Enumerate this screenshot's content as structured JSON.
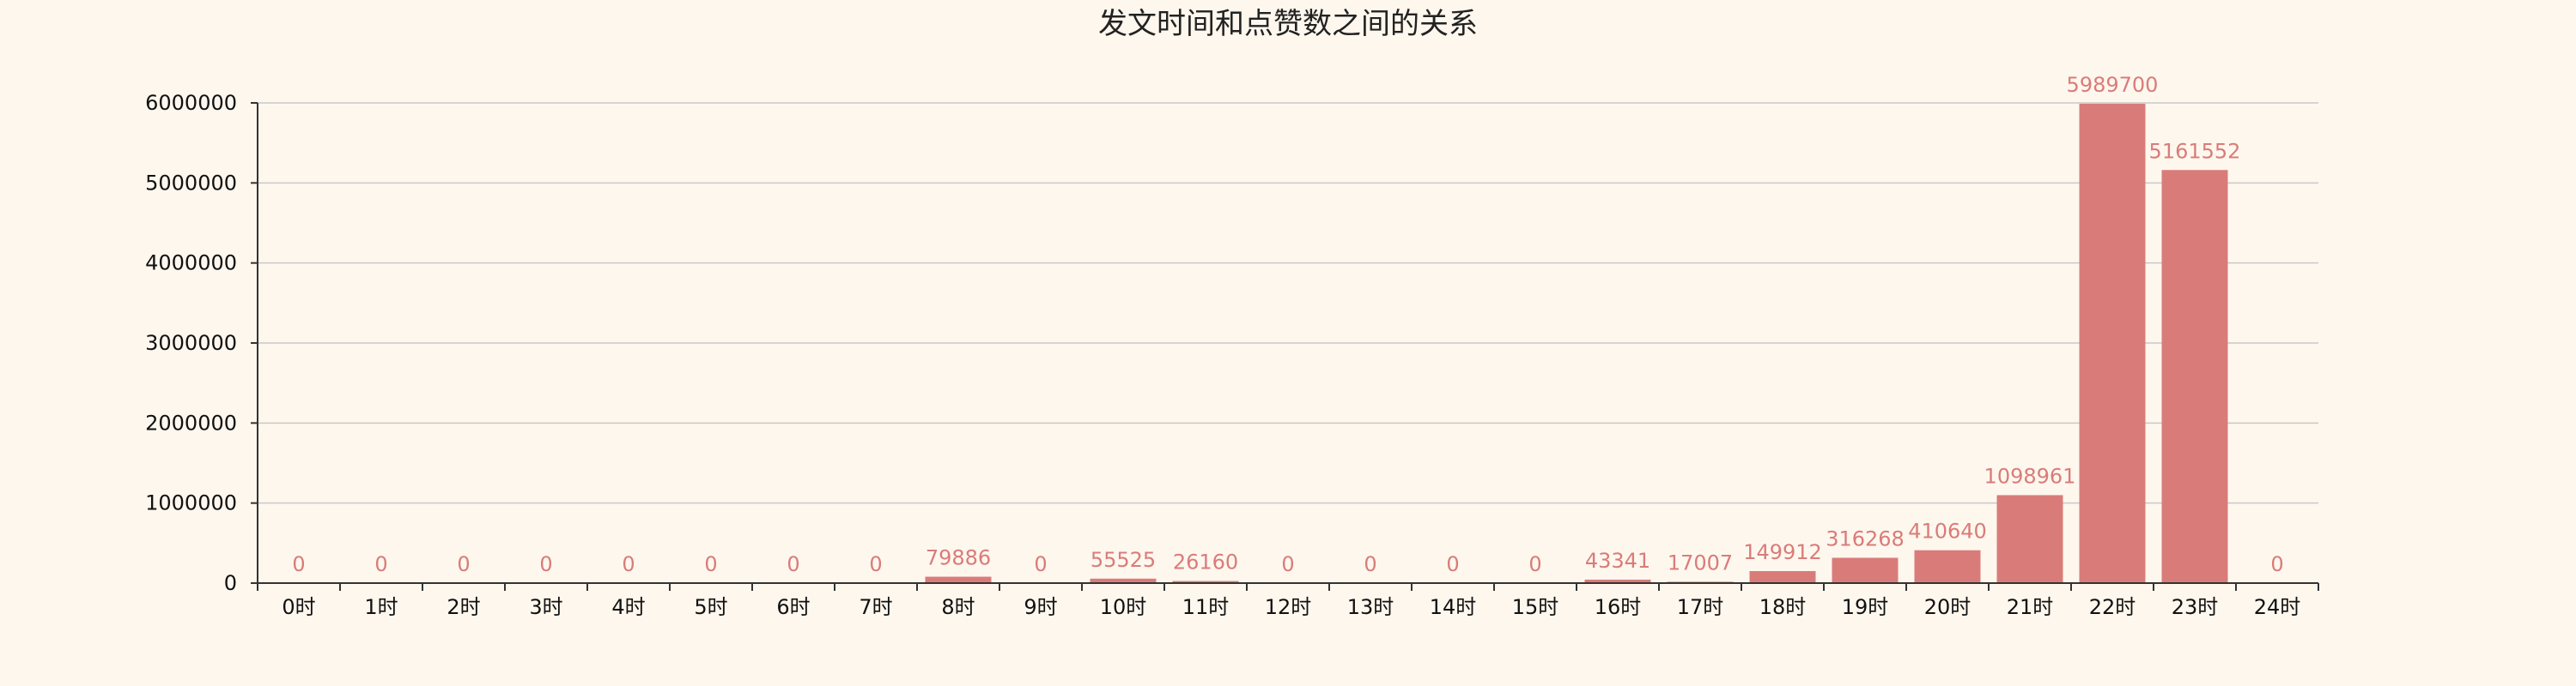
{
  "chart_data": {
    "type": "bar",
    "title": "发文时间和点赞数之间的关系",
    "xlabel": "",
    "ylabel": "",
    "ylim": [
      0,
      6000000
    ],
    "yticks": [
      0,
      1000000,
      2000000,
      3000000,
      4000000,
      5000000,
      6000000
    ],
    "grid": true,
    "categories": [
      "0时",
      "1时",
      "2时",
      "3时",
      "4时",
      "5时",
      "6时",
      "7时",
      "8时",
      "9时",
      "10时",
      "11时",
      "12时",
      "13时",
      "14时",
      "15时",
      "16时",
      "17时",
      "18时",
      "19时",
      "20时",
      "21时",
      "22时",
      "23时",
      "24时"
    ],
    "values": [
      0,
      0,
      0,
      0,
      0,
      0,
      0,
      0,
      79886,
      0,
      55525,
      26160,
      0,
      0,
      0,
      0,
      43341,
      17007,
      149912,
      316268,
      410640,
      1098961,
      5989700,
      5161552,
      0
    ],
    "bar_color": "#d97c79",
    "label_color": "#d97c79",
    "grid_color": "#c8c8c8",
    "background": "#fef7ee"
  }
}
